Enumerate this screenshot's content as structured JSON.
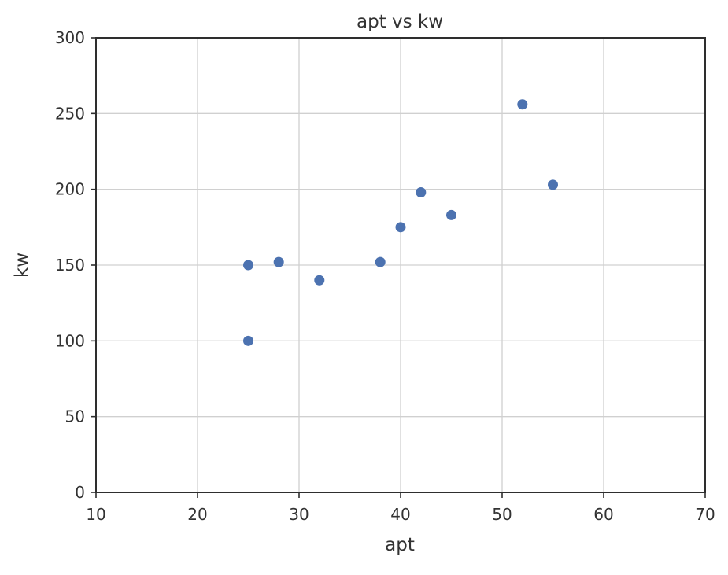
{
  "chart_data": {
    "type": "scatter",
    "title": "apt vs kw",
    "xlabel": "apt",
    "ylabel": "kw",
    "xlim": [
      10,
      70
    ],
    "ylim": [
      0,
      300
    ],
    "xticks": [
      10,
      20,
      30,
      40,
      50,
      60,
      70
    ],
    "yticks": [
      0,
      50,
      100,
      150,
      200,
      250,
      300
    ],
    "grid": true,
    "series": [
      {
        "points": [
          {
            "x": 25,
            "y": 100
          },
          {
            "x": 25,
            "y": 150
          },
          {
            "x": 28,
            "y": 152
          },
          {
            "x": 32,
            "y": 140
          },
          {
            "x": 38,
            "y": 152
          },
          {
            "x": 40,
            "y": 175
          },
          {
            "x": 42,
            "y": 198
          },
          {
            "x": 45,
            "y": 183
          },
          {
            "x": 52,
            "y": 256
          },
          {
            "x": 55,
            "y": 203
          }
        ]
      }
    ],
    "colors": {
      "point": "#4c72b0",
      "grid": "#d0d0d0",
      "axis": "#2e2e2e",
      "text": "#333333"
    }
  }
}
